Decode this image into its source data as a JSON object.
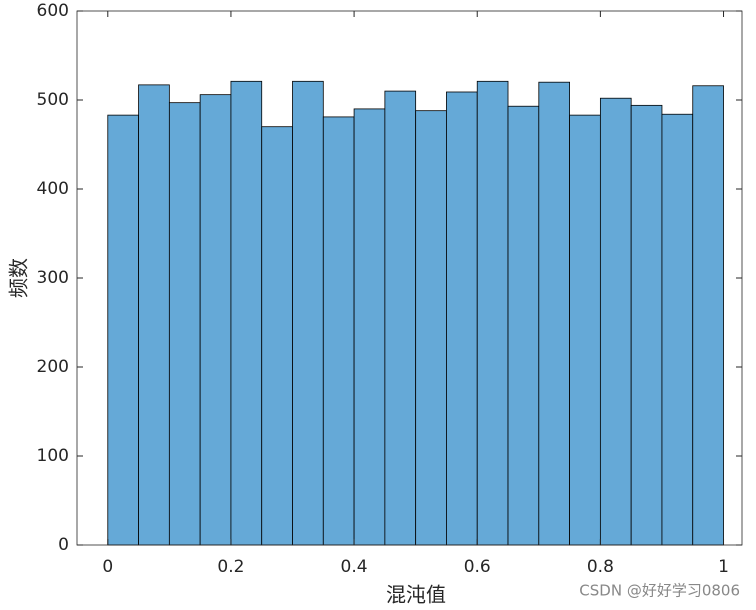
{
  "chart_data": {
    "type": "histogram",
    "bins": [
      0,
      0.05,
      0.1,
      0.15,
      0.2,
      0.25,
      0.3,
      0.35,
      0.4,
      0.45,
      0.5,
      0.55,
      0.6,
      0.65,
      0.7,
      0.75,
      0.8,
      0.85,
      0.9,
      0.95,
      1
    ],
    "values": [
      483,
      517,
      497,
      506,
      521,
      470,
      521,
      481,
      490,
      510,
      488,
      509,
      521,
      493,
      520,
      483,
      502,
      494,
      484,
      516
    ],
    "color": "#65a9d7",
    "xlabel": "混沌值",
    "ylabel": "频数",
    "xlim": [
      -0.05,
      1.03
    ],
    "xticks": [
      0,
      0.2,
      0.4,
      0.6,
      0.8,
      1
    ],
    "ylim": [
      0,
      600
    ],
    "yticks": [
      0,
      100,
      200,
      300,
      400,
      500,
      600
    ],
    "watermark": "CSDN @好好学习0806"
  }
}
